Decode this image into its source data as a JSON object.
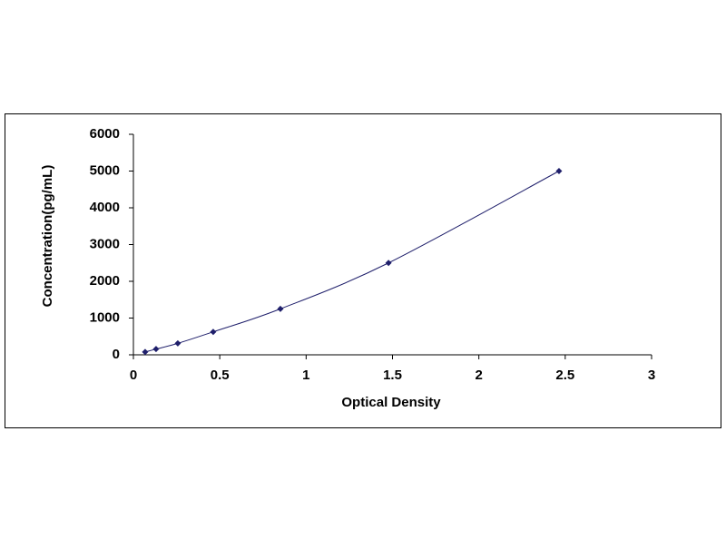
{
  "chart_data": {
    "type": "scatter",
    "line": "smooth",
    "x_label": "Optical Density",
    "y_label": "Concentration(pg/mL)",
    "x": [
      0.068,
      0.131,
      0.257,
      0.462,
      0.851,
      1.477,
      2.464
    ],
    "series": [
      {
        "color": "#1f1f6b",
        "values": [
          78,
          156,
          312,
          625,
          1250,
          2500,
          5000
        ]
      }
    ],
    "xlim": [
      0,
      3
    ],
    "xticks": [
      0,
      0.5,
      1,
      1.5,
      2,
      2.5,
      3
    ],
    "ylim": [
      0,
      6000
    ],
    "yticks": [
      0,
      1000,
      2000,
      3000,
      4000,
      5000,
      6000
    ],
    "grid": false
  }
}
